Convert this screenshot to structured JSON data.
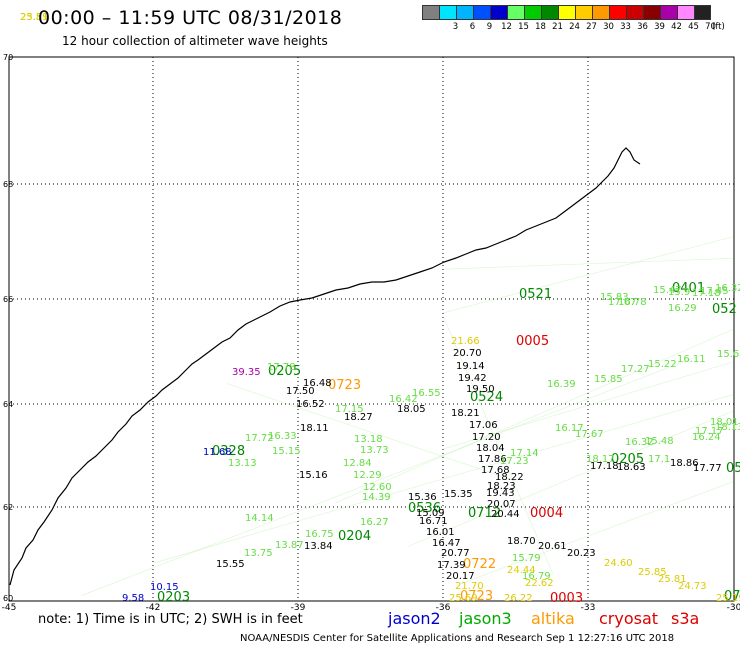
{
  "header": {
    "title": "00:00 – 11:59 UTC 08/31/2018",
    "subtitle": "12 hour collection of altimeter wave heights"
  },
  "color_scale": {
    "unit": "(ft)",
    "swatches": [
      {
        "color": "#808080",
        "label": ""
      },
      {
        "color": "#00e5ff",
        "label": "3"
      },
      {
        "color": "#00b4ff",
        "label": "6"
      },
      {
        "color": "#0050ff",
        "label": "9"
      },
      {
        "color": "#0000cc",
        "label": "12"
      },
      {
        "color": "#66ff66",
        "label": "15"
      },
      {
        "color": "#00cc00",
        "label": "18"
      },
      {
        "color": "#008800",
        "label": "21"
      },
      {
        "color": "#ffff00",
        "label": "24"
      },
      {
        "color": "#ffcc00",
        "label": "27"
      },
      {
        "color": "#ff9900",
        "label": "30"
      },
      {
        "color": "#ff0000",
        "label": "33"
      },
      {
        "color": "#cc0000",
        "label": "36"
      },
      {
        "color": "#880000",
        "label": "39"
      },
      {
        "color": "#aa00aa",
        "label": "42"
      },
      {
        "color": "#ff88ff",
        "label": "45"
      },
      {
        "color": "#222222",
        "label": "70"
      }
    ]
  },
  "map": {
    "lat_labels": [
      "70",
      "68",
      "66",
      "64",
      "62",
      "60"
    ],
    "lon_labels": [
      "-45",
      "-42",
      "-39",
      "-36",
      "-33",
      "-30"
    ],
    "tracks": [
      {
        "color": "#66dd44",
        "from": [
          0.2,
          0.93
        ],
        "to": [
          1.0,
          0.62
        ]
      },
      {
        "color": "#66dd44",
        "from": [
          0.1,
          0.99
        ],
        "to": [
          0.95,
          0.55
        ]
      },
      {
        "color": "#66dd44",
        "from": [
          0.45,
          0.82
        ],
        "to": [
          1.0,
          0.5
        ]
      },
      {
        "color": "#66dd44",
        "from": [
          0.55,
          0.9
        ],
        "to": [
          1.0,
          0.65
        ]
      },
      {
        "color": "#66dd44",
        "from": [
          0.62,
          0.97
        ],
        "to": [
          1.0,
          0.78
        ]
      },
      {
        "color": "#66dd44",
        "from": [
          0.6,
          0.47
        ],
        "to": [
          1.0,
          0.33
        ]
      },
      {
        "color": "#66dd44",
        "from": [
          0.6,
          0.72
        ],
        "to": [
          1.0,
          0.56
        ]
      },
      {
        "color": "#66dd44",
        "from": [
          0.3,
          0.6
        ],
        "to": [
          0.7,
          0.78
        ]
      },
      {
        "color": "#66dd44",
        "from": [
          0.6,
          0.48
        ],
        "to": [
          0.75,
          0.95
        ]
      },
      {
        "color": "#66dd44",
        "from": [
          0.6,
          0.39
        ],
        "to": [
          1.0,
          0.37
        ]
      }
    ],
    "labels": [
      {
        "text": "0005",
        "color": "#dd0000",
        "size": 13
      },
      {
        "text": "0004",
        "color": "#dd0000",
        "size": 13
      },
      {
        "text": "0003",
        "color": "#dd0000",
        "size": 13
      },
      {
        "text": "0722",
        "color": "#ff9900",
        "size": 13
      },
      {
        "text": "0723",
        "color": "#ff9900",
        "size": 13
      },
      {
        "text": "0723",
        "color": "#ff9900",
        "size": 13
      },
      {
        "text": "0205",
        "color": "#008800",
        "size": 13
      },
      {
        "text": "0203",
        "color": "#008800",
        "size": 13
      },
      {
        "text": "0204",
        "color": "#008800",
        "size": 13
      },
      {
        "text": "0205",
        "color": "#008800",
        "size": 13
      },
      {
        "text": "0712",
        "color": "#008800",
        "size": 13
      },
      {
        "text": "0524",
        "color": "#008800",
        "size": 13
      },
      {
        "text": "0401",
        "color": "#008800",
        "size": 13
      },
      {
        "text": "0521",
        "color": "#008800",
        "size": 13
      },
      {
        "text": "0328",
        "color": "#008800",
        "size": 13
      },
      {
        "text": "0536",
        "color": "#008800",
        "size": 13
      },
      {
        "text": "052",
        "color": "#008800",
        "size": 13
      },
      {
        "text": "05",
        "color": "#008800",
        "size": 13
      },
      {
        "text": "07",
        "color": "#008800",
        "size": 13
      },
      {
        "text": "21.66",
        "color": "#ddcc00",
        "size": 10
      },
      {
        "text": "20.70",
        "color": "#000000",
        "size": 10
      },
      {
        "text": "19.14",
        "color": "#000000",
        "size": 10
      },
      {
        "text": "19.42",
        "color": "#000000",
        "size": 10
      },
      {
        "text": "19.50",
        "color": "#000000",
        "size": 10
      },
      {
        "text": "17.06",
        "color": "#000000",
        "size": 10
      },
      {
        "text": "17.20",
        "color": "#000000",
        "size": 10
      },
      {
        "text": "18.04",
        "color": "#000000",
        "size": 10
      },
      {
        "text": "17.86",
        "color": "#000000",
        "size": 10
      },
      {
        "text": "17.68",
        "color": "#000000",
        "size": 10
      },
      {
        "text": "19.43",
        "color": "#000000",
        "size": 10
      },
      {
        "text": "20.07",
        "color": "#000000",
        "size": 10
      },
      {
        "text": "20.44",
        "color": "#000000",
        "size": 10
      },
      {
        "text": "18.70",
        "color": "#000000",
        "size": 10
      },
      {
        "text": "20.61",
        "color": "#000000",
        "size": 10
      },
      {
        "text": "20.23",
        "color": "#000000",
        "size": 10
      },
      {
        "text": "16.71",
        "color": "#000000",
        "size": 10
      },
      {
        "text": "16.01",
        "color": "#000000",
        "size": 10
      },
      {
        "text": "16.47",
        "color": "#000000",
        "size": 10
      },
      {
        "text": "20.77",
        "color": "#000000",
        "size": 10
      },
      {
        "text": "17.39",
        "color": "#000000",
        "size": 10
      },
      {
        "text": "20.17",
        "color": "#000000",
        "size": 10
      },
      {
        "text": "21.70",
        "color": "#ddcc00",
        "size": 10
      },
      {
        "text": "25.69",
        "color": "#ddcc00",
        "size": 10
      },
      {
        "text": "26.22",
        "color": "#ddcc00",
        "size": 10
      },
      {
        "text": "24.44",
        "color": "#ddcc00",
        "size": 10
      },
      {
        "text": "25.19",
        "color": "#ddcc00",
        "size": 10
      },
      {
        "text": "18.27",
        "color": "#000000",
        "size": 10
      },
      {
        "text": "18.11",
        "color": "#000000",
        "size": 10
      },
      {
        "text": "17.50",
        "color": "#000000",
        "size": 10
      },
      {
        "text": "16.52",
        "color": "#000000",
        "size": 10
      },
      {
        "text": "18.05",
        "color": "#000000",
        "size": 10
      },
      {
        "text": "18.21",
        "color": "#000000",
        "size": 10
      },
      {
        "text": "16.48",
        "color": "#000000",
        "size": 10
      },
      {
        "text": "15.36",
        "color": "#000000",
        "size": 10
      },
      {
        "text": "15.16",
        "color": "#000000",
        "size": 10
      },
      {
        "text": "15.09",
        "color": "#000000",
        "size": 10
      },
      {
        "text": "15.35",
        "color": "#000000",
        "size": 10
      },
      {
        "text": "15.55",
        "color": "#000000",
        "size": 10
      },
      {
        "text": "13.84",
        "color": "#000000",
        "size": 10
      },
      {
        "text": "39.35",
        "color": "#aa00aa",
        "size": 10
      },
      {
        "text": "11.68",
        "color": "#0000cc",
        "size": 10
      },
      {
        "text": "10.15",
        "color": "#0000cc",
        "size": 10
      },
      {
        "text": "9.58",
        "color": "#0000cc",
        "size": 10
      },
      {
        "text": "17.78",
        "color": "#66dd44",
        "size": 10
      },
      {
        "text": "17.72",
        "color": "#66dd44",
        "size": 10
      },
      {
        "text": "16.33",
        "color": "#66dd44",
        "size": 10
      },
      {
        "text": "15.15",
        "color": "#66dd44",
        "size": 10
      },
      {
        "text": "13.18",
        "color": "#66dd44",
        "size": 10
      },
      {
        "text": "13.73",
        "color": "#66dd44",
        "size": 10
      },
      {
        "text": "12.84",
        "color": "#66dd44",
        "size": 10
      },
      {
        "text": "12.29",
        "color": "#66dd44",
        "size": 10
      },
      {
        "text": "12.60",
        "color": "#66dd44",
        "size": 10
      },
      {
        "text": "14.39",
        "color": "#66dd44",
        "size": 10
      },
      {
        "text": "16.42",
        "color": "#66dd44",
        "size": 10
      },
      {
        "text": "16.55",
        "color": "#66dd44",
        "size": 10
      },
      {
        "text": "17.15",
        "color": "#66dd44",
        "size": 10
      },
      {
        "text": "16.17",
        "color": "#66dd44",
        "size": 10
      },
      {
        "text": "17.67",
        "color": "#66dd44",
        "size": 10
      },
      {
        "text": "16.39",
        "color": "#66dd44",
        "size": 10
      },
      {
        "text": "15.85",
        "color": "#66dd44",
        "size": 10
      },
      {
        "text": "17.27",
        "color": "#66dd44",
        "size": 10
      },
      {
        "text": "15.22",
        "color": "#66dd44",
        "size": 10
      },
      {
        "text": "16.11",
        "color": "#66dd44",
        "size": 10
      },
      {
        "text": "15.63",
        "color": "#66dd44",
        "size": 10
      },
      {
        "text": "15.47",
        "color": "#66dd44",
        "size": 10
      },
      {
        "text": "15.9",
        "color": "#66dd44",
        "size": 10
      },
      {
        "text": "17.45",
        "color": "#66dd44",
        "size": 10
      },
      {
        "text": "17.18",
        "color": "#66dd44",
        "size": 10
      },
      {
        "text": "16.32",
        "color": "#66dd44",
        "size": 10
      },
      {
        "text": "15.83",
        "color": "#66dd44",
        "size": 10
      },
      {
        "text": "16.78",
        "color": "#66dd44",
        "size": 10
      },
      {
        "text": "17.07",
        "color": "#66dd44",
        "size": 10
      },
      {
        "text": "16.29",
        "color": "#66dd44",
        "size": 10
      },
      {
        "text": "16.32",
        "color": "#66dd44",
        "size": 10
      },
      {
        "text": "15.48",
        "color": "#66dd44",
        "size": 10
      },
      {
        "text": "16.24",
        "color": "#66dd44",
        "size": 10
      },
      {
        "text": "17.17",
        "color": "#66dd44",
        "size": 10
      },
      {
        "text": "18.13",
        "color": "#66dd44",
        "size": 10
      },
      {
        "text": "18.01",
        "color": "#66dd44",
        "size": 10
      },
      {
        "text": "18.17",
        "color": "#66dd44",
        "size": 10
      },
      {
        "text": "17.1",
        "color": "#66dd44",
        "size": 10
      },
      {
        "text": "18.86",
        "color": "#000000",
        "size": 10
      },
      {
        "text": "17.77",
        "color": "#000000",
        "size": 10
      },
      {
        "text": "17.18",
        "color": "#000000",
        "size": 10
      },
      {
        "text": "18.63",
        "color": "#000000",
        "size": 10
      },
      {
        "text": "17.14",
        "color": "#66dd44",
        "size": 10
      },
      {
        "text": "17.23",
        "color": "#66dd44",
        "size": 10
      },
      {
        "text": "18.22",
        "color": "#000000",
        "size": 10
      },
      {
        "text": "18.23",
        "color": "#000000",
        "size": 10
      },
      {
        "text": "16.75",
        "color": "#66dd44",
        "size": 10
      },
      {
        "text": "16.27",
        "color": "#66dd44",
        "size": 10
      },
      {
        "text": "13.75",
        "color": "#66dd44",
        "size": 10
      },
      {
        "text": "13.87",
        "color": "#66dd44",
        "size": 10
      },
      {
        "text": "14.14",
        "color": "#66dd44",
        "size": 10
      },
      {
        "text": "13.13",
        "color": "#66dd44",
        "size": 10
      },
      {
        "text": "15.79",
        "color": "#66dd44",
        "size": 10
      },
      {
        "text": "16.79",
        "color": "#66dd44",
        "size": 10
      },
      {
        "text": "22.62",
        "color": "#ddcc00",
        "size": 10
      },
      {
        "text": "24.60",
        "color": "#ddcc00",
        "size": 10
      },
      {
        "text": "25.85",
        "color": "#ddcc00",
        "size": 10
      },
      {
        "text": "25.81",
        "color": "#ddcc00",
        "size": 10
      },
      {
        "text": "24.73",
        "color": "#ddcc00",
        "size": 10
      },
      {
        "text": "25.81",
        "color": "#ddcc00",
        "size": 10
      },
      {
        "text": "23.59",
        "color": "#ddcc00",
        "size": 10
      }
    ]
  },
  "footer": {
    "note": "note:  1) Time is in UTC;  2) SWH is in feet",
    "legend": [
      {
        "name": "jason2",
        "color": "#0000cc"
      },
      {
        "name": "jason3",
        "color": "#00aa00"
      },
      {
        "name": "altika",
        "color": "#ff9900"
      },
      {
        "name": "cryosat",
        "color": "#dd0000"
      },
      {
        "name": "s3a",
        "color": "#dd0000"
      }
    ],
    "credit": "NOAA/NESDIS Center for Satellite Applications and Research    Sep  1 12:27:16 UTC 2018"
  }
}
